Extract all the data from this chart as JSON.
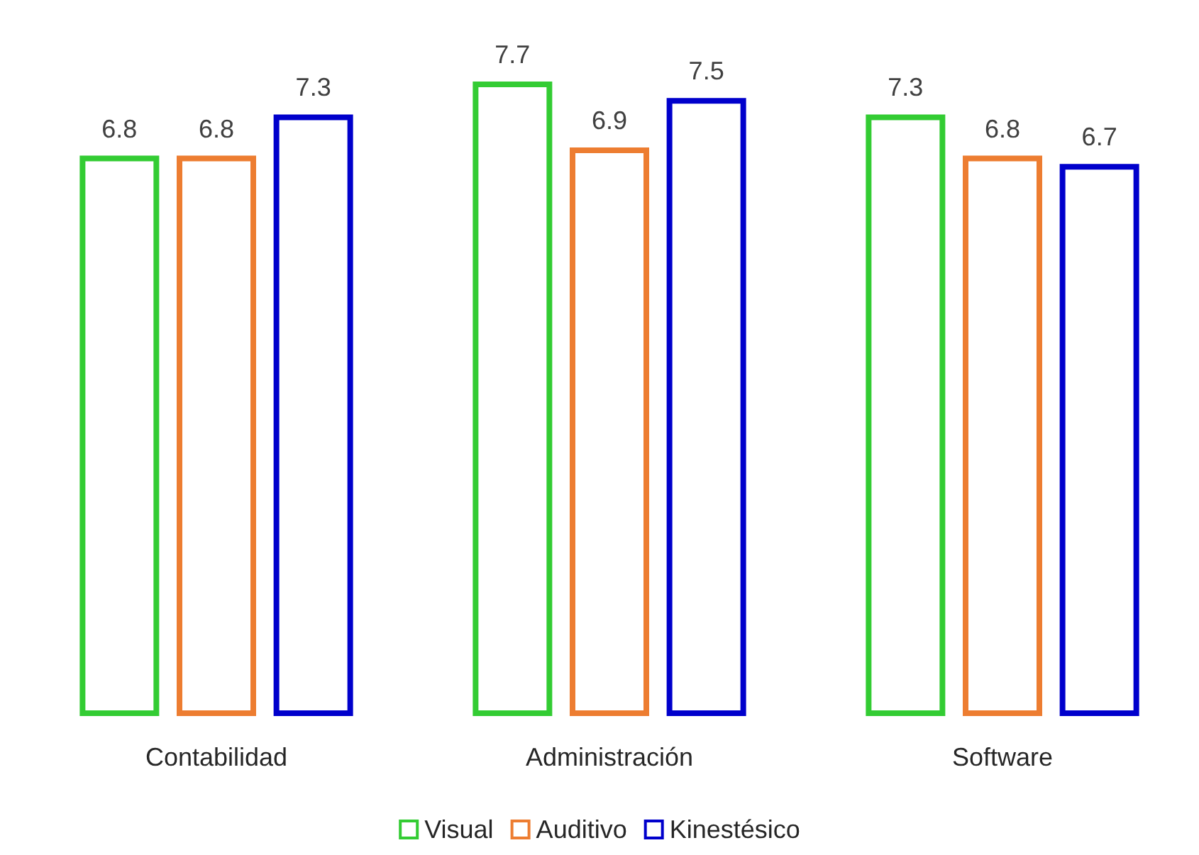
{
  "chart_data": {
    "type": "bar",
    "categories": [
      "Contabilidad",
      "Administración",
      "Software"
    ],
    "series": [
      {
        "name": "Visual",
        "color": "#33cc33",
        "values": [
          6.8,
          7.7,
          7.3
        ]
      },
      {
        "name": "Auditivo",
        "color": "#ed7d31",
        "values": [
          6.8,
          6.9,
          6.8
        ]
      },
      {
        "name": "Kinestésico",
        "color": "#0000cc",
        "values": [
          7.3,
          7.5,
          6.7
        ]
      }
    ],
    "data_labels": true,
    "legend": "bottom",
    "tick_labels": "x"
  }
}
